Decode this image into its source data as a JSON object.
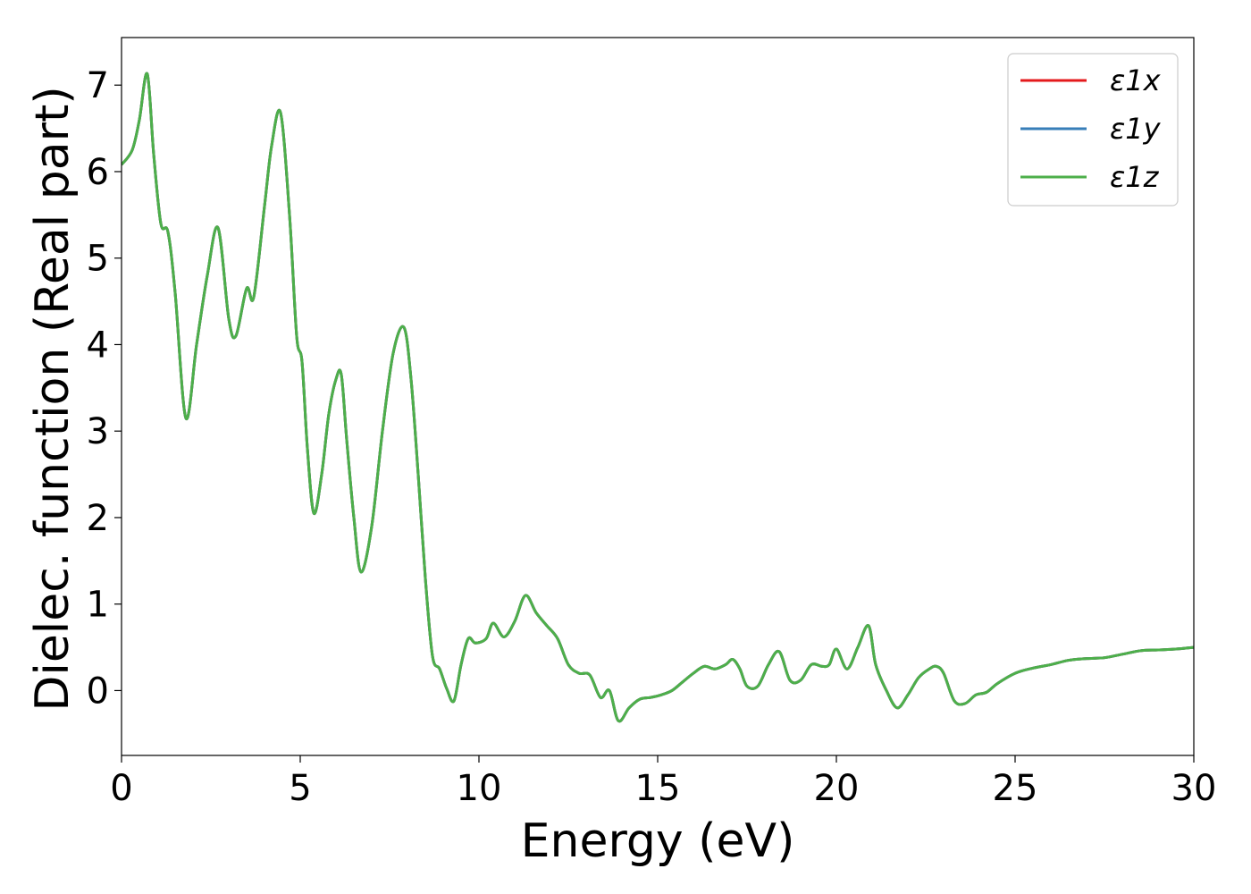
{
  "chart_data": {
    "type": "line",
    "title": "",
    "xlabel": "Energy (eV)",
    "ylabel": "Dielec. function (Real part)",
    "xlim": [
      0,
      30
    ],
    "ylim": [
      -0.75,
      7.55
    ],
    "xticks": [
      0,
      5,
      10,
      15,
      20,
      25,
      30
    ],
    "yticks": [
      0,
      1,
      2,
      3,
      4,
      5,
      6,
      7
    ],
    "grid": false,
    "legend_position": "top-right",
    "x": [
      0,
      0.3,
      0.5,
      0.72,
      0.9,
      1.1,
      1.3,
      1.5,
      1.8,
      2.1,
      2.4,
      2.7,
      3.0,
      3.2,
      3.5,
      3.7,
      4.0,
      4.2,
      4.45,
      4.7,
      4.9,
      5.05,
      5.2,
      5.38,
      5.6,
      5.8,
      6.0,
      6.15,
      6.3,
      6.5,
      6.7,
      7.0,
      7.3,
      7.6,
      7.9,
      8.1,
      8.3,
      8.5,
      8.7,
      8.9,
      9.1,
      9.3,
      9.5,
      9.7,
      9.9,
      10.2,
      10.4,
      10.7,
      11.0,
      11.3,
      11.6,
      11.9,
      12.2,
      12.5,
      12.8,
      13.1,
      13.4,
      13.65,
      13.9,
      14.2,
      14.5,
      14.8,
      15.1,
      15.4,
      15.7,
      16.0,
      16.3,
      16.6,
      16.9,
      17.1,
      17.3,
      17.5,
      17.8,
      18.1,
      18.4,
      18.7,
      19.0,
      19.3,
      19.6,
      19.8,
      20.0,
      20.3,
      20.6,
      20.9,
      21.1,
      21.4,
      21.7,
      22.0,
      22.3,
      22.6,
      22.8,
      23.0,
      23.3,
      23.6,
      23.9,
      24.2,
      24.5,
      25.0,
      25.5,
      26.0,
      26.5,
      27.0,
      27.5,
      28.0,
      28.5,
      29.0,
      29.5,
      30.0
    ],
    "series": [
      {
        "name": "ε1x",
        "color": "#e41a1c",
        "values": [
          6.08,
          6.25,
          6.6,
          7.13,
          6.2,
          5.4,
          5.3,
          4.6,
          3.15,
          4.0,
          4.8,
          5.35,
          4.3,
          4.1,
          4.65,
          4.55,
          5.6,
          6.3,
          6.68,
          5.5,
          4.1,
          3.8,
          2.8,
          2.05,
          2.5,
          3.2,
          3.6,
          3.65,
          2.9,
          2.0,
          1.37,
          1.9,
          3.0,
          3.9,
          4.2,
          3.6,
          2.5,
          1.3,
          0.4,
          0.25,
          0.02,
          -0.12,
          0.3,
          0.6,
          0.55,
          0.6,
          0.78,
          0.62,
          0.8,
          1.1,
          0.9,
          0.75,
          0.6,
          0.3,
          0.2,
          0.18,
          -0.08,
          0.0,
          -0.35,
          -0.2,
          -0.1,
          -0.08,
          -0.05,
          0.0,
          0.1,
          0.2,
          0.28,
          0.25,
          0.3,
          0.36,
          0.25,
          0.05,
          0.05,
          0.3,
          0.45,
          0.12,
          0.12,
          0.3,
          0.28,
          0.3,
          0.48,
          0.25,
          0.5,
          0.75,
          0.3,
          0.0,
          -0.2,
          -0.05,
          0.15,
          0.25,
          0.28,
          0.2,
          -0.12,
          -0.15,
          -0.05,
          -0.02,
          0.08,
          0.2,
          0.26,
          0.3,
          0.35,
          0.37,
          0.38,
          0.42,
          0.46,
          0.47,
          0.48,
          0.5
        ]
      },
      {
        "name": "ε1y",
        "color": "#377eb8",
        "values": [
          6.08,
          6.25,
          6.6,
          7.13,
          6.2,
          5.4,
          5.3,
          4.6,
          3.15,
          4.0,
          4.8,
          5.35,
          4.3,
          4.1,
          4.65,
          4.55,
          5.6,
          6.3,
          6.68,
          5.5,
          4.1,
          3.8,
          2.8,
          2.05,
          2.5,
          3.2,
          3.6,
          3.65,
          2.9,
          2.0,
          1.37,
          1.9,
          3.0,
          3.9,
          4.2,
          3.6,
          2.5,
          1.3,
          0.4,
          0.25,
          0.02,
          -0.12,
          0.3,
          0.6,
          0.55,
          0.6,
          0.78,
          0.62,
          0.8,
          1.1,
          0.9,
          0.75,
          0.6,
          0.3,
          0.2,
          0.18,
          -0.08,
          0.0,
          -0.35,
          -0.2,
          -0.1,
          -0.08,
          -0.05,
          0.0,
          0.1,
          0.2,
          0.28,
          0.25,
          0.3,
          0.36,
          0.25,
          0.05,
          0.05,
          0.3,
          0.45,
          0.12,
          0.12,
          0.3,
          0.28,
          0.3,
          0.48,
          0.25,
          0.5,
          0.75,
          0.3,
          0.0,
          -0.2,
          -0.05,
          0.15,
          0.25,
          0.28,
          0.2,
          -0.12,
          -0.15,
          -0.05,
          -0.02,
          0.08,
          0.2,
          0.26,
          0.3,
          0.35,
          0.37,
          0.38,
          0.42,
          0.46,
          0.47,
          0.48,
          0.5
        ]
      },
      {
        "name": "ε1z",
        "color": "#4daf4a",
        "values": [
          6.08,
          6.25,
          6.6,
          7.13,
          6.2,
          5.4,
          5.3,
          4.6,
          3.15,
          4.0,
          4.8,
          5.35,
          4.3,
          4.1,
          4.65,
          4.55,
          5.6,
          6.3,
          6.68,
          5.5,
          4.1,
          3.8,
          2.8,
          2.05,
          2.5,
          3.2,
          3.6,
          3.65,
          2.9,
          2.0,
          1.37,
          1.9,
          3.0,
          3.9,
          4.2,
          3.6,
          2.5,
          1.3,
          0.4,
          0.25,
          0.02,
          -0.12,
          0.3,
          0.6,
          0.55,
          0.6,
          0.78,
          0.62,
          0.8,
          1.1,
          0.9,
          0.75,
          0.6,
          0.3,
          0.2,
          0.18,
          -0.08,
          0.0,
          -0.35,
          -0.2,
          -0.1,
          -0.08,
          -0.05,
          0.0,
          0.1,
          0.2,
          0.28,
          0.25,
          0.3,
          0.36,
          0.25,
          0.05,
          0.05,
          0.3,
          0.45,
          0.12,
          0.12,
          0.3,
          0.28,
          0.3,
          0.48,
          0.25,
          0.5,
          0.75,
          0.3,
          0.0,
          -0.2,
          -0.05,
          0.15,
          0.25,
          0.28,
          0.2,
          -0.12,
          -0.15,
          -0.05,
          -0.02,
          0.08,
          0.2,
          0.26,
          0.3,
          0.35,
          0.37,
          0.38,
          0.42,
          0.46,
          0.47,
          0.48,
          0.5
        ]
      }
    ]
  }
}
